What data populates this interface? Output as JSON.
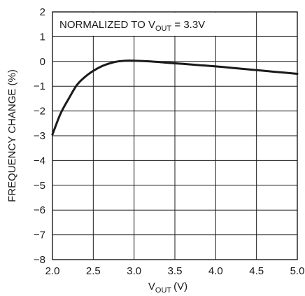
{
  "chart_data": {
    "type": "line",
    "xlabel": "V",
    "xlabel_sub": "OUT",
    "xlabel_unit": "(V)",
    "ylabel": "FREQUENCY CHANGE (%)",
    "xlim": [
      2.0,
      5.0
    ],
    "ylim": [
      -8,
      2
    ],
    "xticks": [
      2.0,
      2.5,
      3.0,
      3.5,
      4.0,
      4.5,
      5.0
    ],
    "xtick_labels": [
      "2.0",
      "2.5",
      "3.0",
      "3.5",
      "4.0",
      "4.5",
      "5.0"
    ],
    "yticks": [
      2,
      1,
      0,
      -1,
      -2,
      -3,
      -4,
      -5,
      -6,
      -7,
      -8
    ],
    "ytick_labels": [
      "2",
      "1",
      "0",
      "−1",
      "−2",
      "−3",
      "−4",
      "−5",
      "−6",
      "−7",
      "−8"
    ],
    "grid": true,
    "annotation": {
      "prefix": "NORMALIZED TO V",
      "sub": "OUT",
      "suffix": " = 3.3V"
    },
    "series": [
      {
        "x": [
          2.0,
          2.1,
          2.2,
          2.3,
          2.4,
          2.5,
          2.6,
          2.7,
          2.8,
          2.9,
          3.0,
          3.2,
          3.4,
          3.6,
          3.8,
          4.0,
          4.2,
          4.4,
          4.6,
          4.8,
          5.0
        ],
        "y": [
          -2.95,
          -2.1,
          -1.5,
          -0.95,
          -0.62,
          -0.38,
          -0.2,
          -0.08,
          0.0,
          0.03,
          0.03,
          0.0,
          -0.05,
          -0.1,
          -0.15,
          -0.2,
          -0.26,
          -0.32,
          -0.38,
          -0.44,
          -0.5
        ]
      }
    ]
  }
}
